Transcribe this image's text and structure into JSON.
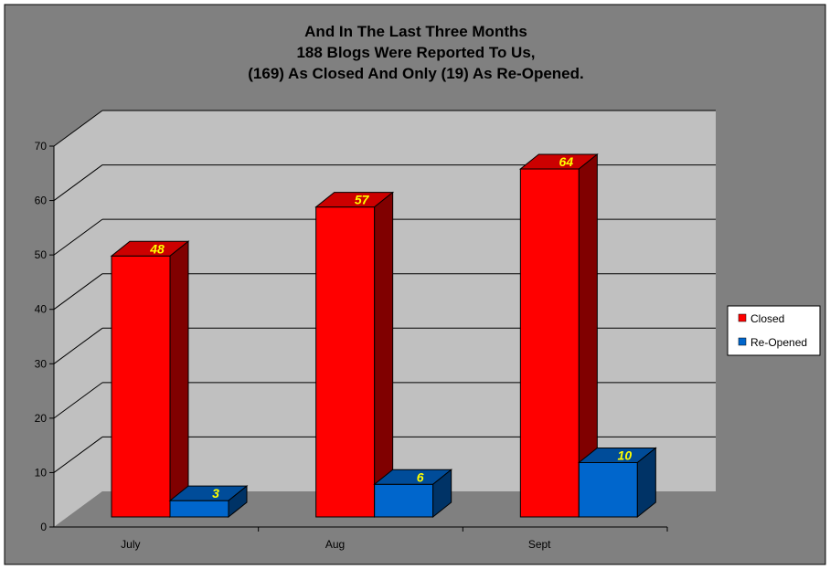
{
  "chart_data": {
    "type": "bar",
    "title": [
      "And In The Last Three Months",
      "188 Blogs Were Reported To Us,",
      "(169) As Closed And Only (19) As Re-Opened."
    ],
    "xlabel": "",
    "ylabel": "",
    "categories": [
      "July",
      "Aug",
      "Sept"
    ],
    "series": [
      {
        "name": "Closed",
        "values": [
          48,
          57,
          64
        ],
        "color": "#ff0000"
      },
      {
        "name": "Re-Opened",
        "values": [
          3,
          6,
          10
        ],
        "color": "#0066cc"
      }
    ],
    "ylim": [
      0,
      70
    ],
    "yticks": [
      "0",
      "10",
      "20",
      "30",
      "40",
      "50",
      "60",
      "70"
    ],
    "grid": true,
    "three_d": true,
    "data_labels": true,
    "legend_position": "right",
    "colors": {
      "background": "#808080",
      "wall": "#c0c0c0",
      "floor": "#808080",
      "data_label": "#ffff00"
    }
  }
}
